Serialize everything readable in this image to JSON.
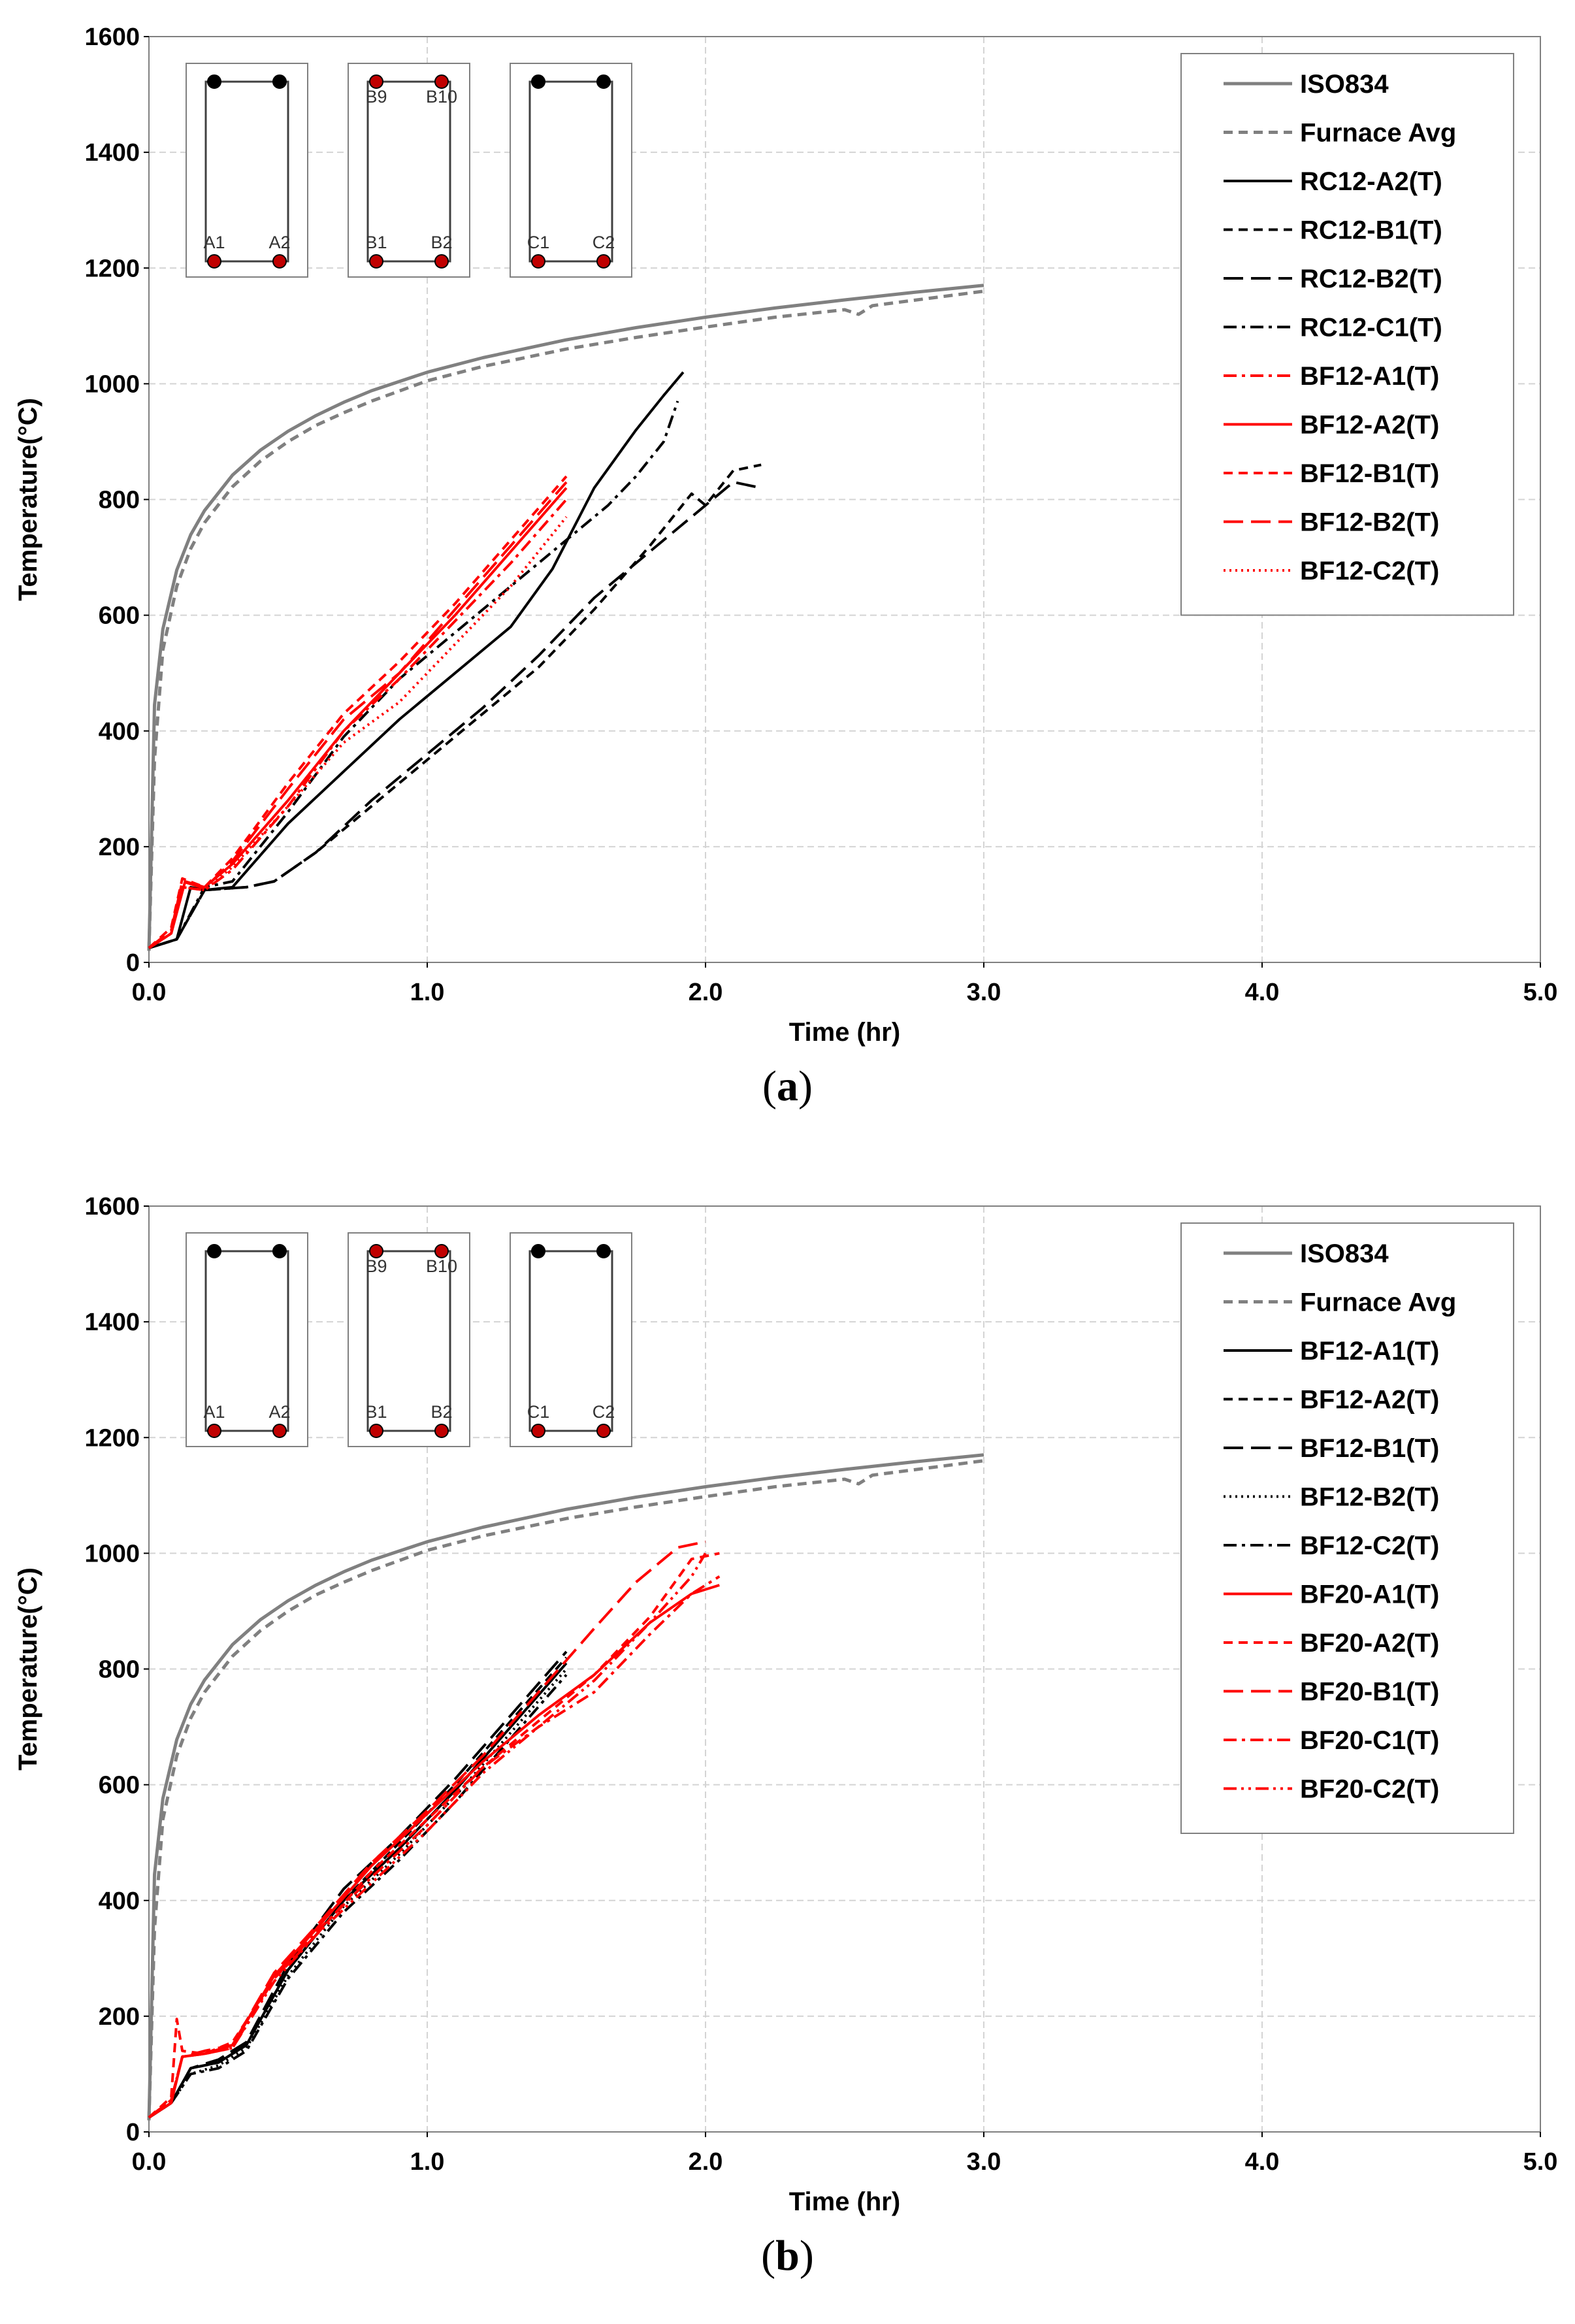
{
  "chart_data": [
    {
      "type": "line",
      "panel": "a",
      "caption": "a",
      "xlabel": "Time (hr)",
      "ylabel": "Temperature(°C)",
      "xlim": [
        0,
        5
      ],
      "ylim": [
        0,
        1600
      ],
      "xticks": [
        "0.0",
        "1.0",
        "2.0",
        "3.0",
        "4.0",
        "5.0"
      ],
      "yticks": [
        "0",
        "200",
        "400",
        "600",
        "800",
        "1000",
        "1200",
        "1400",
        "1600"
      ],
      "grid": true,
      "legend_position": "top-right",
      "sections": [
        {
          "labels": [
            "A1",
            "A2"
          ],
          "top_labels": [
            "",
            ""
          ],
          "top_bars_red": false
        },
        {
          "labels": [
            "B1",
            "B2"
          ],
          "top_labels": [
            "B9",
            "B10"
          ],
          "top_bars_red": true
        },
        {
          "labels": [
            "C1",
            "C2"
          ],
          "top_labels": [
            "",
            ""
          ],
          "top_bars_red": false
        }
      ],
      "series": [
        {
          "name": "ISO834",
          "color": "#808080",
          "style": "solid",
          "x": [
            0,
            0.02,
            0.05,
            0.1,
            0.15,
            0.2,
            0.3,
            0.4,
            0.5,
            0.6,
            0.7,
            0.8,
            1.0,
            1.2,
            1.5,
            1.75,
            2.0,
            2.25,
            2.5,
            2.75,
            3.0
          ],
          "y": [
            20,
            445,
            576,
            678,
            739,
            781,
            842,
            885,
            918,
            945,
            968,
            988,
            1020,
            1045,
            1076,
            1097,
            1115,
            1131,
            1145,
            1158,
            1170
          ]
        },
        {
          "name": "Furnace Avg",
          "color": "#808080",
          "style": "dash",
          "x": [
            0,
            0.02,
            0.05,
            0.1,
            0.15,
            0.2,
            0.3,
            0.4,
            0.5,
            0.6,
            0.7,
            0.8,
            1.0,
            1.2,
            1.5,
            1.75,
            2.0,
            2.25,
            2.5,
            2.55,
            2.6,
            3.0
          ],
          "y": [
            20,
            350,
            540,
            650,
            715,
            760,
            822,
            866,
            900,
            928,
            950,
            970,
            1005,
            1030,
            1060,
            1080,
            1098,
            1115,
            1128,
            1120,
            1135,
            1160
          ]
        },
        {
          "name": "RC12-A2(T)",
          "color": "#000000",
          "style": "solid",
          "x": [
            0,
            0.1,
            0.15,
            0.2,
            0.3,
            0.5,
            0.7,
            0.9,
            1.1,
            1.3,
            1.45,
            1.6,
            1.75,
            1.85,
            1.92
          ],
          "y": [
            25,
            40,
            130,
            125,
            130,
            240,
            330,
            420,
            500,
            580,
            680,
            820,
            920,
            980,
            1020
          ]
        },
        {
          "name": "RC12-B1(T)",
          "color": "#000000",
          "style": "dash",
          "x": [
            0,
            0.1,
            0.2,
            0.35,
            0.45,
            0.6,
            0.8,
            1.0,
            1.2,
            1.4,
            1.6,
            1.8,
            1.95,
            2.0,
            2.05,
            2.1,
            2.2
          ],
          "y": [
            25,
            40,
            125,
            130,
            140,
            190,
            270,
            350,
            430,
            510,
            610,
            720,
            810,
            790,
            820,
            850,
            860
          ]
        },
        {
          "name": "RC12-B2(T)",
          "color": "#000000",
          "style": "longdash",
          "x": [
            0,
            0.1,
            0.2,
            0.35,
            0.45,
            0.6,
            0.8,
            1.0,
            1.2,
            1.4,
            1.6,
            1.8,
            2.0,
            2.1,
            2.2
          ],
          "y": [
            25,
            40,
            125,
            130,
            140,
            190,
            280,
            360,
            440,
            530,
            630,
            710,
            790,
            830,
            820
          ]
        },
        {
          "name": "RC12-C1(T)",
          "color": "#000000",
          "style": "dashdot",
          "x": [
            0,
            0.1,
            0.2,
            0.3,
            0.5,
            0.7,
            0.9,
            1.1,
            1.3,
            1.5,
            1.65,
            1.75,
            1.85,
            1.9
          ],
          "y": [
            25,
            40,
            130,
            140,
            260,
            390,
            490,
            570,
            650,
            730,
            790,
            840,
            900,
            970
          ]
        },
        {
          "name": "BF12-A1(T)",
          "color": "#ff0000",
          "style": "dashdot",
          "x": [
            0,
            0.08,
            0.12,
            0.2,
            0.3,
            0.5,
            0.7,
            0.9,
            1.1,
            1.3,
            1.5
          ],
          "y": [
            25,
            50,
            130,
            125,
            160,
            270,
            400,
            490,
            590,
            690,
            800
          ]
        },
        {
          "name": "BF12-A2(T)",
          "color": "#ff0000",
          "style": "solid",
          "x": [
            0,
            0.08,
            0.13,
            0.2,
            0.3,
            0.5,
            0.7,
            0.9,
            1.1,
            1.3,
            1.5
          ],
          "y": [
            25,
            50,
            140,
            130,
            170,
            280,
            400,
            500,
            600,
            710,
            820
          ]
        },
        {
          "name": "BF12-B1(T)",
          "color": "#ff0000",
          "style": "dash",
          "x": [
            0,
            0.08,
            0.12,
            0.2,
            0.3,
            0.5,
            0.7,
            0.9,
            1.1,
            1.3,
            1.5
          ],
          "y": [
            25,
            60,
            145,
            130,
            180,
            310,
            430,
            520,
            620,
            730,
            840
          ]
        },
        {
          "name": "BF12-B2(T)",
          "color": "#ff0000",
          "style": "longdash",
          "x": [
            0,
            0.08,
            0.12,
            0.2,
            0.3,
            0.5,
            0.7,
            0.9,
            1.1,
            1.3,
            1.5
          ],
          "y": [
            25,
            55,
            140,
            128,
            175,
            300,
            420,
            500,
            610,
            720,
            830
          ]
        },
        {
          "name": "BF12-C2(T)",
          "color": "#ff0000",
          "style": "dot",
          "x": [
            0,
            0.08,
            0.12,
            0.2,
            0.3,
            0.5,
            0.7,
            0.9,
            1.1,
            1.3,
            1.5
          ],
          "y": [
            25,
            50,
            130,
            125,
            165,
            270,
            380,
            450,
            550,
            650,
            770
          ]
        }
      ]
    },
    {
      "type": "line",
      "panel": "b",
      "caption": "b",
      "xlabel": "Time (hr)",
      "ylabel": "Temperature(°C)",
      "xlim": [
        0,
        5
      ],
      "ylim": [
        0,
        1600
      ],
      "xticks": [
        "0.0",
        "1.0",
        "2.0",
        "3.0",
        "4.0",
        "5.0"
      ],
      "yticks": [
        "0",
        "200",
        "400",
        "600",
        "800",
        "1000",
        "1200",
        "1400",
        "1600"
      ],
      "grid": true,
      "legend_position": "top-right",
      "sections": [
        {
          "labels": [
            "A1",
            "A2"
          ],
          "top_labels": [
            "",
            ""
          ],
          "top_bars_red": false
        },
        {
          "labels": [
            "B1",
            "B2"
          ],
          "top_labels": [
            "B9",
            "B10"
          ],
          "top_bars_red": true
        },
        {
          "labels": [
            "C1",
            "C2"
          ],
          "top_labels": [
            "",
            ""
          ],
          "top_bars_red": false
        }
      ],
      "series": [
        {
          "name": "ISO834",
          "color": "#808080",
          "style": "solid",
          "x": [
            0,
            0.02,
            0.05,
            0.1,
            0.15,
            0.2,
            0.3,
            0.4,
            0.5,
            0.6,
            0.7,
            0.8,
            1.0,
            1.2,
            1.5,
            1.75,
            2.0,
            2.25,
            2.5,
            2.75,
            3.0
          ],
          "y": [
            20,
            445,
            576,
            678,
            739,
            781,
            842,
            885,
            918,
            945,
            968,
            988,
            1020,
            1045,
            1076,
            1097,
            1115,
            1131,
            1145,
            1158,
            1170
          ]
        },
        {
          "name": "Furnace Avg",
          "color": "#808080",
          "style": "dash",
          "x": [
            0,
            0.02,
            0.05,
            0.1,
            0.15,
            0.2,
            0.3,
            0.4,
            0.5,
            0.6,
            0.7,
            0.8,
            1.0,
            1.2,
            1.5,
            1.75,
            2.0,
            2.25,
            2.5,
            2.55,
            2.6,
            3.0
          ],
          "y": [
            20,
            350,
            540,
            650,
            715,
            760,
            822,
            866,
            900,
            928,
            950,
            970,
            1005,
            1030,
            1060,
            1080,
            1098,
            1115,
            1128,
            1120,
            1135,
            1160
          ]
        },
        {
          "name": "BF12-A1(T)",
          "color": "#000000",
          "style": "solid",
          "x": [
            0,
            0.08,
            0.15,
            0.25,
            0.35,
            0.5,
            0.7,
            0.9,
            1.1,
            1.3,
            1.5
          ],
          "y": [
            25,
            50,
            110,
            120,
            150,
            280,
            400,
            490,
            590,
            700,
            810
          ]
        },
        {
          "name": "BF12-A2(T)",
          "color": "#000000",
          "style": "dash",
          "x": [
            0,
            0.08,
            0.15,
            0.25,
            0.35,
            0.5,
            0.7,
            0.9,
            1.1,
            1.3,
            1.5
          ],
          "y": [
            25,
            50,
            110,
            120,
            150,
            280,
            400,
            500,
            600,
            710,
            820
          ]
        },
        {
          "name": "BF12-B1(T)",
          "color": "#000000",
          "style": "longdash",
          "x": [
            0,
            0.08,
            0.15,
            0.25,
            0.35,
            0.5,
            0.7,
            0.9,
            1.1,
            1.3,
            1.5
          ],
          "y": [
            25,
            50,
            110,
            125,
            155,
            290,
            420,
            510,
            610,
            720,
            830
          ]
        },
        {
          "name": "BF12-B2(T)",
          "color": "#000000",
          "style": "dot",
          "x": [
            0,
            0.08,
            0.15,
            0.25,
            0.35,
            0.5,
            0.7,
            0.9,
            1.1,
            1.3,
            1.5
          ],
          "y": [
            25,
            50,
            100,
            115,
            145,
            270,
            390,
            480,
            580,
            690,
            800
          ]
        },
        {
          "name": "BF12-C2(T)",
          "color": "#000000",
          "style": "dashdot",
          "x": [
            0,
            0.08,
            0.15,
            0.25,
            0.35,
            0.5,
            0.7,
            0.9,
            1.1,
            1.3,
            1.5
          ],
          "y": [
            25,
            50,
            100,
            110,
            140,
            265,
            380,
            470,
            570,
            680,
            790
          ]
        },
        {
          "name": "BF20-A1(T)",
          "color": "#ff0000",
          "style": "solid",
          "x": [
            0,
            0.08,
            0.12,
            0.2,
            0.3,
            0.45,
            0.6,
            0.8,
            1.0,
            1.2,
            1.4,
            1.6,
            1.8,
            1.95,
            2.05
          ],
          "y": [
            25,
            50,
            130,
            135,
            150,
            270,
            350,
            460,
            550,
            640,
            720,
            790,
            880,
            930,
            945
          ]
        },
        {
          "name": "BF20-A2(T)",
          "color": "#ff0000",
          "style": "dash",
          "x": [
            0,
            0.08,
            0.1,
            0.12,
            0.2,
            0.3,
            0.45,
            0.6,
            0.8,
            1.0,
            1.2,
            1.4,
            1.6,
            1.8,
            1.95,
            2.05
          ],
          "y": [
            25,
            60,
            195,
            140,
            135,
            155,
            265,
            340,
            450,
            540,
            630,
            710,
            790,
            890,
            990,
            1000
          ]
        },
        {
          "name": "BF20-B1(T)",
          "color": "#ff0000",
          "style": "longdash",
          "x": [
            0,
            0.08,
            0.12,
            0.2,
            0.3,
            0.45,
            0.6,
            0.8,
            1.0,
            1.2,
            1.4,
            1.6,
            1.75,
            1.9,
            2.0
          ],
          "y": [
            25,
            55,
            130,
            140,
            150,
            275,
            355,
            465,
            555,
            650,
            760,
            870,
            950,
            1010,
            1020
          ]
        },
        {
          "name": "BF20-C1(T)",
          "color": "#ff0000",
          "style": "dashdot",
          "x": [
            0,
            0.08,
            0.12,
            0.2,
            0.3,
            0.45,
            0.6,
            0.8,
            1.0,
            1.2,
            1.4,
            1.6,
            1.8,
            1.95,
            2.05
          ],
          "y": [
            25,
            55,
            130,
            135,
            145,
            265,
            345,
            440,
            530,
            630,
            700,
            760,
            860,
            930,
            960
          ]
        },
        {
          "name": "BF20-C2(T)",
          "color": "#ff0000",
          "style": "dashdotdot",
          "x": [
            0,
            0.08,
            0.12,
            0.2,
            0.3,
            0.45,
            0.6,
            0.8,
            1.0,
            1.2,
            1.4,
            1.6,
            1.8,
            1.95,
            2.0
          ],
          "y": [
            25,
            55,
            130,
            135,
            145,
            260,
            340,
            430,
            520,
            620,
            700,
            780,
            880,
            960,
            1000
          ]
        }
      ]
    }
  ]
}
